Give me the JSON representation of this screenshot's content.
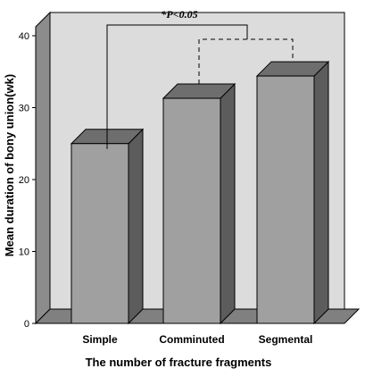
{
  "chart_data": {
    "type": "bar",
    "categories": [
      "Simple",
      "Comminuted",
      "Segmental"
    ],
    "values": [
      25,
      31.3,
      34.4
    ],
    "xlabel": "The number of fracture fragments",
    "ylabel": "Mean duration of bony union(wk)",
    "ylim": [
      0,
      40
    ],
    "yticks": [
      "0",
      "10",
      "20",
      "30",
      "40"
    ],
    "grid": false,
    "annotation": "*P<0.05",
    "colors": {
      "bar_front": "#a0a0a0",
      "bar_top": "#6e6e6e",
      "bar_side": "#5c5c5c",
      "back_wall": "#dcdcdc",
      "side_wall": "#8c8c8c",
      "floor": "#808080"
    }
  }
}
